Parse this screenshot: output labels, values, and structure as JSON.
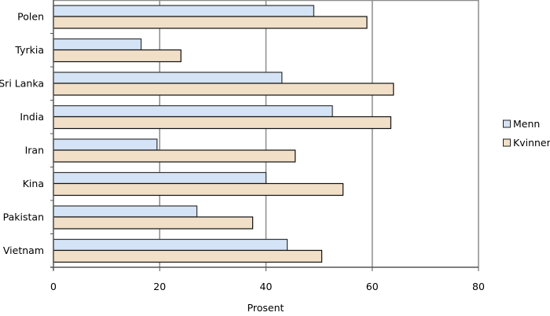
{
  "chart_data": {
    "type": "bar",
    "orientation": "horizontal",
    "title": "",
    "xlabel": "Prosent",
    "ylabel": "",
    "xlim": [
      0,
      80
    ],
    "xticks": [
      0,
      20,
      40,
      60,
      80
    ],
    "grid": true,
    "legend_position": "right",
    "categories": [
      "Polen",
      "Tyrkia",
      "Sri Lanka",
      "India",
      "Iran",
      "Kina",
      "Pakistan",
      "Vietnam"
    ],
    "series": [
      {
        "name": "Menn",
        "color": "#d4e3f5",
        "values": [
          49,
          16.5,
          43,
          52.5,
          19.5,
          40,
          27,
          44
        ]
      },
      {
        "name": "Kvinner",
        "color": "#f1dfc8",
        "values": [
          59,
          24,
          64,
          63.5,
          45.5,
          54.5,
          37.5,
          50.5
        ]
      }
    ]
  },
  "colors": {
    "grid": "#8c8c8c",
    "bar_border": "#333333",
    "axis": "#555555"
  }
}
